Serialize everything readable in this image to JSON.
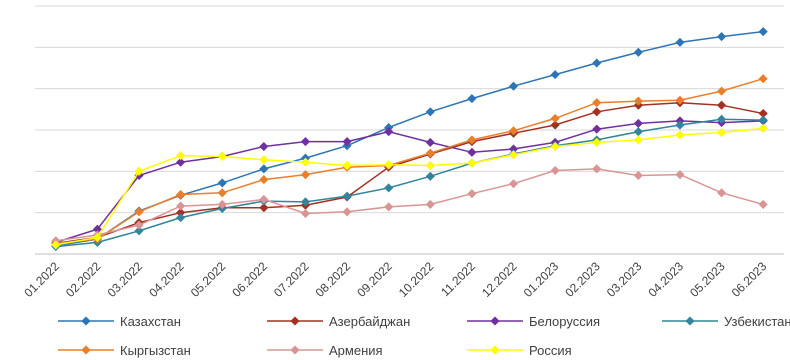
{
  "chart_data": {
    "type": "line",
    "title": "",
    "xlabel": "",
    "ylabel": "",
    "ylim": [
      0,
      300
    ],
    "y_ticks": [
      0,
      50,
      100,
      150,
      200,
      250,
      300
    ],
    "y_tick_labels_visible": false,
    "grid": "horizontal",
    "legend_position": "bottom",
    "categories": [
      "01.2022",
      "02.2022",
      "03.2022",
      "04.2022",
      "05.2022",
      "06.2022",
      "07.2022",
      "08.2022",
      "09.2022",
      "10.2022",
      "11.2022",
      "12.2022",
      "01.2023",
      "02.2023",
      "03.2023",
      "04.2023",
      "05.2023",
      "06.2023"
    ],
    "series": [
      {
        "name": "Казахстан",
        "color": "#2e75b6",
        "values": [
          10,
          18,
          52,
          71,
          86,
          103,
          116,
          131,
          153,
          172,
          188,
          203,
          217,
          231,
          244,
          256,
          263,
          269
        ]
      },
      {
        "name": "Азербайджан",
        "color": "#a33122",
        "values": [
          13,
          20,
          38,
          50,
          56,
          56,
          59,
          69,
          105,
          121,
          136,
          146,
          156,
          172,
          180,
          183,
          180,
          170
        ]
      },
      {
        "name": "Белоруссия",
        "color": "#7030a0",
        "values": [
          14,
          30,
          95,
          111,
          118,
          130,
          136,
          136,
          148,
          135,
          123,
          127,
          135,
          151,
          158,
          161,
          159,
          161
        ]
      },
      {
        "name": "Узбекистан",
        "color": "#31859c",
        "values": [
          9,
          14,
          28,
          44,
          55,
          64,
          63,
          70,
          80,
          94,
          110,
          121,
          131,
          138,
          148,
          156,
          163,
          162
        ]
      },
      {
        "name": "Кыргызстан",
        "color": "#e97f2a",
        "values": [
          13,
          18,
          51,
          72,
          74,
          90,
          96,
          105,
          107,
          122,
          138,
          149,
          164,
          183,
          185,
          186,
          197,
          212
        ]
      },
      {
        "name": "Армения",
        "color": "#d99594",
        "values": [
          16,
          23,
          35,
          58,
          60,
          66,
          49,
          51,
          57,
          60,
          73,
          85,
          101,
          103,
          95,
          96,
          74,
          60
        ]
      },
      {
        "name": "Россия",
        "color": "#ffff00",
        "values": [
          11,
          20,
          100,
          119,
          118,
          114,
          111,
          107,
          108,
          107,
          110,
          120,
          130,
          135,
          138,
          144,
          147,
          152
        ]
      }
    ]
  }
}
